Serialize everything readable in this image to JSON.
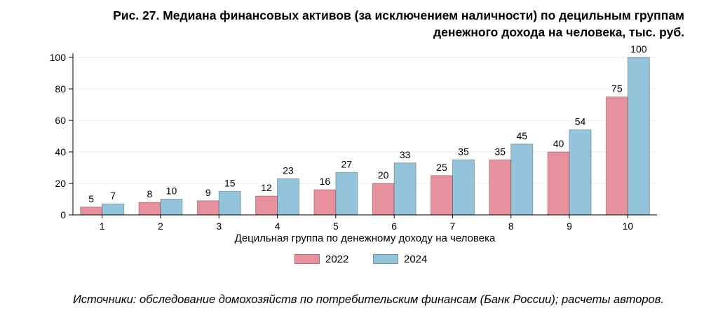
{
  "title_line1": "Рис. 27. Медиана финансовых активов (за исключением наличности) по децильным группам",
  "title_line2": "денежного дохода на человека, тыс. руб.",
  "source": "Источники: обследование домохозяйств по потребительским финансам (Банк России); расчеты авторов.",
  "chart_data": {
    "type": "bar",
    "title": "Рис. 27. Медиана финансовых активов (за исключением наличности) по децильным группам денежного дохода на человека, тыс. руб.",
    "xlabel": "Децильная группа по денежному доходу на человека",
    "ylabel": "",
    "categories": [
      "1",
      "2",
      "3",
      "4",
      "5",
      "6",
      "7",
      "8",
      "9",
      "10"
    ],
    "series": [
      {
        "name": "2022",
        "color": "#e8909c",
        "values": [
          5,
          8,
          9,
          12,
          16,
          20,
          25,
          35,
          40,
          75
        ]
      },
      {
        "name": "2024",
        "color": "#92c5dc",
        "values": [
          7,
          10,
          15,
          23,
          27,
          33,
          35,
          45,
          54,
          100
        ]
      }
    ],
    "ylim": [
      0,
      100
    ],
    "yticks": [
      0,
      20,
      40,
      60,
      80,
      100
    ],
    "grid": true,
    "legend_position": "bottom-center"
  }
}
